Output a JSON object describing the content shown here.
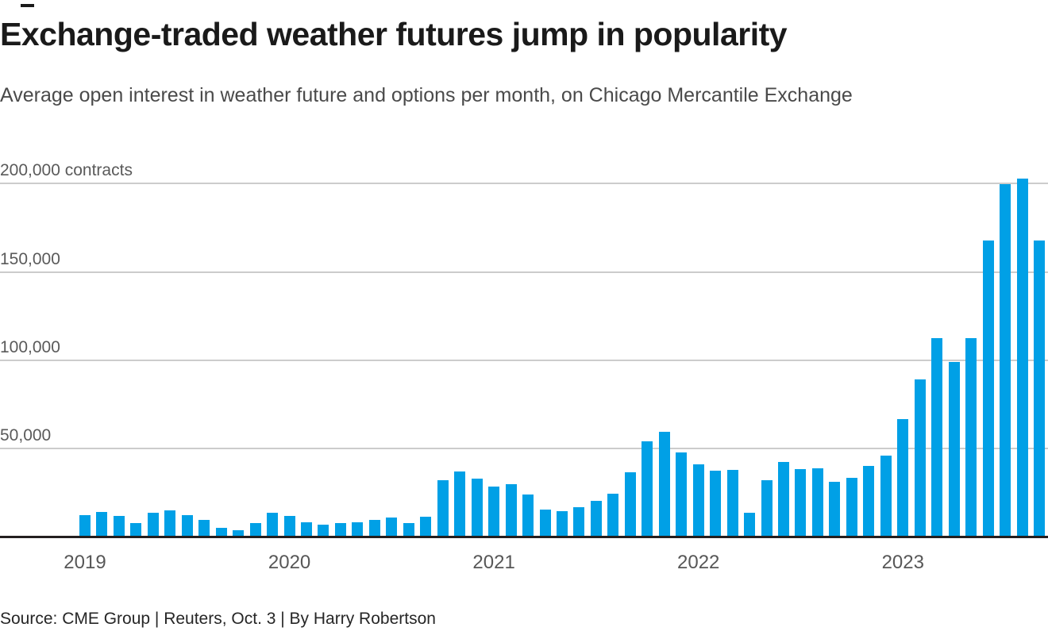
{
  "chart_data": {
    "type": "bar",
    "title": "Exchange-traded weather futures jump in popularity",
    "subtitle": "Average open interest in weather future and options per month, on Chicago Mercantile Exchange",
    "unit": "contracts",
    "bar_color": "#00a0e6",
    "grid": "horizontal",
    "legend": "none",
    "ylim": [
      0,
      215000
    ],
    "y_ticks": [
      {
        "value": 200000,
        "label": "200,000 contracts"
      },
      {
        "value": 150000,
        "label": "150,000"
      },
      {
        "value": 100000,
        "label": "100,000"
      },
      {
        "value": 50000,
        "label": "50,000"
      }
    ],
    "x_ticks": [
      {
        "label": "2019",
        "month_index": 0
      },
      {
        "label": "2020",
        "month_index": 12
      },
      {
        "label": "2021",
        "month_index": 24
      },
      {
        "label": "2022",
        "month_index": 36
      },
      {
        "label": "2023",
        "month_index": 48
      }
    ],
    "x": [
      "2019-01",
      "2019-02",
      "2019-03",
      "2019-04",
      "2019-05",
      "2019-06",
      "2019-07",
      "2019-08",
      "2019-09",
      "2019-10",
      "2019-11",
      "2019-12",
      "2020-01",
      "2020-02",
      "2020-03",
      "2020-04",
      "2020-05",
      "2020-06",
      "2020-07",
      "2020-08",
      "2020-09",
      "2020-10",
      "2020-11",
      "2020-12",
      "2021-01",
      "2021-02",
      "2021-03",
      "2021-04",
      "2021-05",
      "2021-06",
      "2021-07",
      "2021-08",
      "2021-09",
      "2021-10",
      "2021-11",
      "2021-12",
      "2022-01",
      "2022-02",
      "2022-03",
      "2022-04",
      "2022-05",
      "2022-06",
      "2022-07",
      "2022-08",
      "2022-09",
      "2022-10",
      "2022-11",
      "2022-12",
      "2023-01",
      "2023-02",
      "2023-03",
      "2023-04",
      "2023-05",
      "2023-06",
      "2023-07",
      "2023-08",
      "2023-09"
    ],
    "values": [
      12500,
      14000,
      12000,
      8000,
      13500,
      15000,
      12500,
      9500,
      5000,
      4000,
      8000,
      13500,
      12000,
      8500,
      7000,
      8000,
      8500,
      9500,
      11000,
      8000,
      11500,
      32000,
      37000,
      33000,
      28500,
      30000,
      24000,
      15500,
      14500,
      17000,
      20500,
      24500,
      36500,
      54000,
      59500,
      48000,
      41000,
      37500,
      38000,
      13500,
      32000,
      42500,
      38500,
      39000,
      31000,
      33500,
      40000,
      46000,
      66500,
      89000,
      112500,
      99000,
      112500,
      168000,
      199500,
      203000,
      168000
    ]
  },
  "footer": {
    "source": "Source: CME Group | Reuters, Oct. 3 | By Harry Robertson"
  }
}
